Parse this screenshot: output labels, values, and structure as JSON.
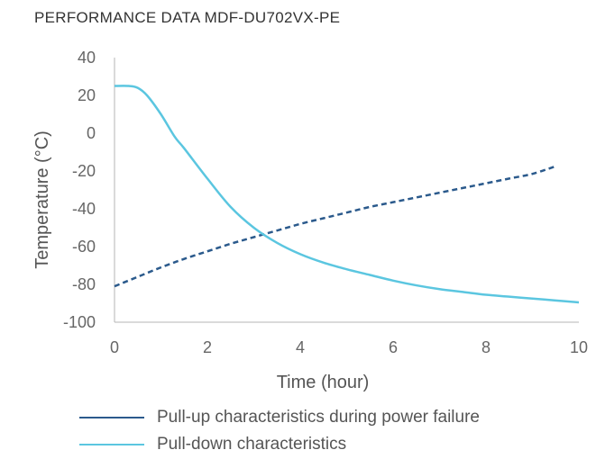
{
  "chart_data": {
    "type": "line",
    "title": "PERFORMANCE DATA MDF-DU702VX-PE",
    "xlabel": "Time (hour)",
    "ylabel": "Temperature (°C)",
    "xlim": [
      0,
      10
    ],
    "ylim": [
      -100,
      40
    ],
    "x_ticks": [
      "0",
      "2",
      "4",
      "6",
      "8",
      "10"
    ],
    "y_ticks": [
      "40",
      "20",
      "0",
      "-20",
      "-40",
      "-60",
      "-80",
      "-100"
    ],
    "grid": false,
    "legend_position": "bottom",
    "series": [
      {
        "name": "Pull-up characteristics during power failure",
        "color": "#2b5a8c",
        "style": "dashed",
        "x": [
          0,
          0.5,
          1,
          1.5,
          2,
          2.5,
          3,
          3.5,
          4,
          4.5,
          5,
          5.5,
          6,
          6.5,
          7,
          7.5,
          8,
          8.5,
          9,
          9.5
        ],
        "y": [
          -81,
          -76,
          -71,
          -66.5,
          -62.5,
          -58.5,
          -55,
          -51.5,
          -48,
          -45,
          -42,
          -39,
          -36.5,
          -34,
          -31.5,
          -29,
          -26.5,
          -24,
          -21.5,
          -17.5
        ]
      },
      {
        "name": "Pull-down characteristics",
        "color": "#5bc6e0",
        "style": "solid",
        "x": [
          0,
          0.3,
          0.5,
          0.7,
          1,
          1.3,
          1.5,
          2,
          2.5,
          3,
          3.5,
          4,
          4.5,
          5,
          5.5,
          6,
          6.5,
          7,
          7.5,
          8,
          8.5,
          9,
          9.5,
          10
        ],
        "y": [
          25,
          25,
          24,
          20,
          10,
          -2,
          -8,
          -24,
          -39,
          -50,
          -58,
          -64,
          -68.5,
          -72,
          -75,
          -78,
          -80.5,
          -82.5,
          -84,
          -85.5,
          -86.5,
          -87.5,
          -88.5,
          -89.5
        ]
      }
    ]
  }
}
